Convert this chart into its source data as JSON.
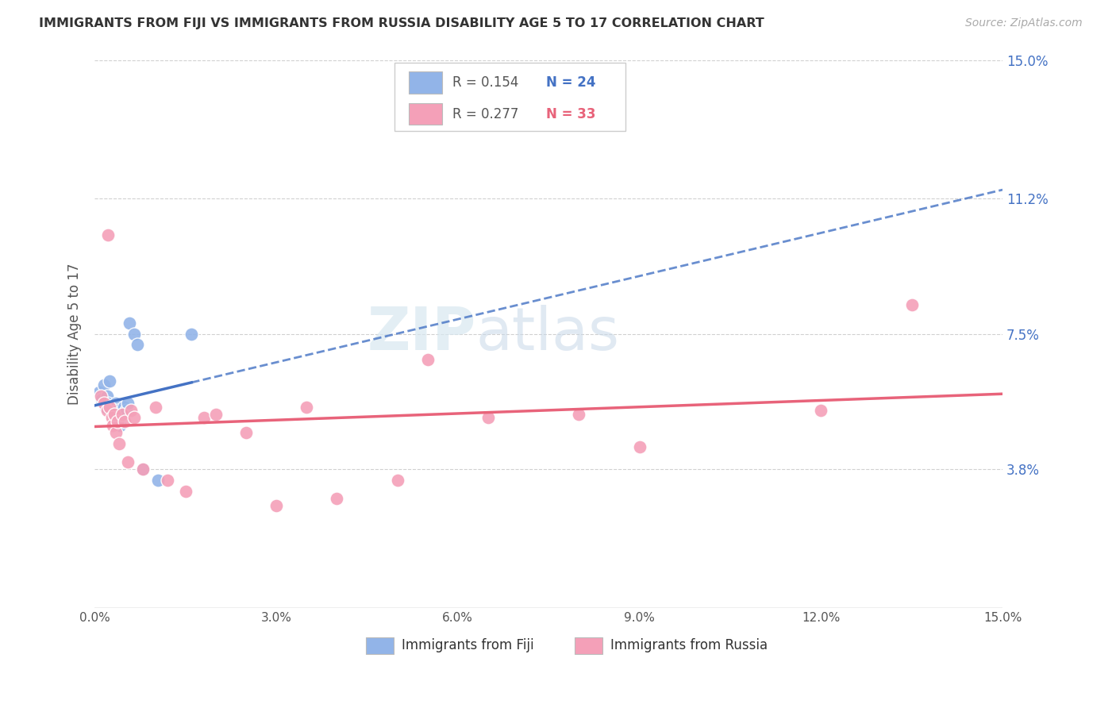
{
  "title": "IMMIGRANTS FROM FIJI VS IMMIGRANTS FROM RUSSIA DISABILITY AGE 5 TO 17 CORRELATION CHART",
  "source": "Source: ZipAtlas.com",
  "ylabel": "Disability Age 5 to 17",
  "xlim": [
    0.0,
    15.0
  ],
  "ylim": [
    0.0,
    15.0
  ],
  "fiji_color": "#92b4e8",
  "russia_color": "#f4a0b8",
  "fiji_line_color": "#4472c4",
  "russia_line_color": "#e8637a",
  "watermark_zip": "ZIP",
  "watermark_atlas": "atlas",
  "background_color": "#ffffff",
  "grid_color": "#d0d0d0",
  "fiji_x": [
    0.08,
    0.12,
    0.15,
    0.18,
    0.2,
    0.22,
    0.25,
    0.28,
    0.3,
    0.32,
    0.35,
    0.38,
    0.4,
    0.42,
    0.45,
    0.48,
    0.52,
    0.55,
    0.58,
    0.65,
    0.7,
    0.8,
    1.05,
    1.6
  ],
  "fiji_y": [
    5.9,
    5.7,
    6.1,
    5.5,
    5.8,
    5.6,
    6.2,
    5.4,
    5.5,
    5.3,
    5.6,
    5.4,
    5.2,
    5.0,
    5.3,
    5.5,
    5.4,
    5.6,
    7.8,
    7.5,
    7.2,
    3.8,
    3.5,
    7.5
  ],
  "russia_x": [
    0.1,
    0.15,
    0.2,
    0.22,
    0.25,
    0.28,
    0.3,
    0.32,
    0.35,
    0.38,
    0.4,
    0.45,
    0.5,
    0.55,
    0.6,
    0.65,
    0.8,
    1.0,
    1.2,
    1.5,
    1.8,
    2.0,
    2.5,
    3.0,
    3.5,
    4.0,
    5.0,
    5.5,
    6.5,
    8.0,
    9.0,
    12.0,
    13.5
  ],
  "russia_y": [
    5.8,
    5.6,
    5.4,
    10.2,
    5.5,
    5.2,
    5.0,
    5.3,
    4.8,
    5.1,
    4.5,
    5.3,
    5.1,
    4.0,
    5.4,
    5.2,
    3.8,
    5.5,
    3.5,
    3.2,
    5.2,
    5.3,
    4.8,
    2.8,
    5.5,
    3.0,
    3.5,
    6.8,
    5.2,
    5.3,
    4.4,
    5.4,
    8.3
  ],
  "fiji_max_x": 2.0
}
